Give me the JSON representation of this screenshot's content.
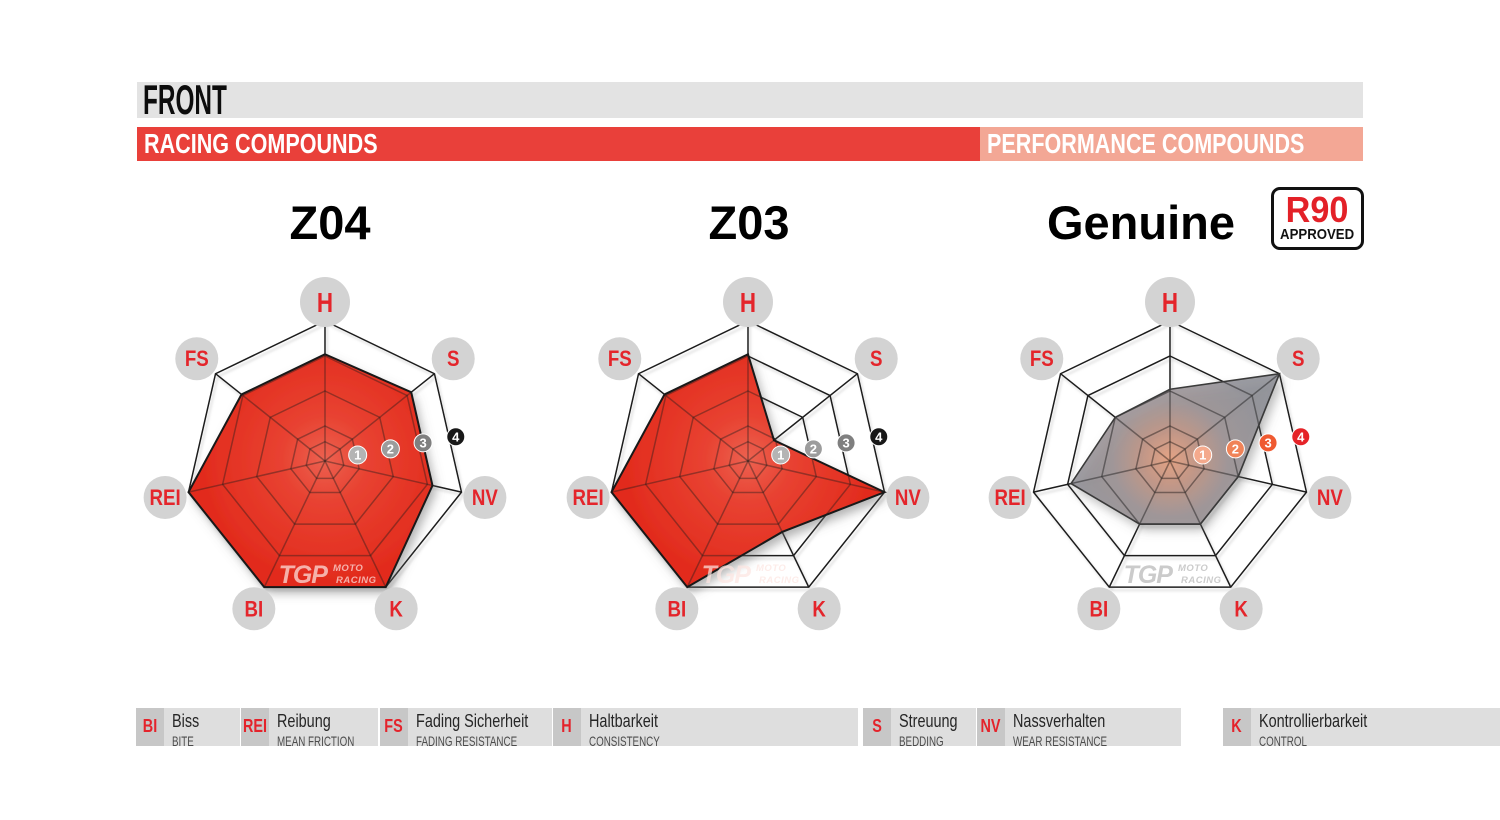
{
  "header": {
    "title": "FRONT",
    "racing_label": "RACING COMPOUNDS",
    "performance_label": "PERFORMANCE COMPOUNDS"
  },
  "badge": {
    "line1": "R90",
    "line2": "APPROVED"
  },
  "watermark": {
    "tgp": "TGP",
    "moto": "MOTO",
    "racing": "RACING"
  },
  "scale": {
    "rings": [
      0.55,
      1,
      2,
      3,
      4
    ],
    "markers": [
      1,
      2,
      3,
      4
    ],
    "max": 4
  },
  "axis_labels": [
    "H",
    "S",
    "NV",
    "K",
    "BI",
    "REI",
    "FS"
  ],
  "chart_data": [
    {
      "type": "radar",
      "title": "Z04",
      "group": "racing",
      "categories": [
        "H",
        "S",
        "NV",
        "K",
        "BI",
        "REI",
        "FS"
      ],
      "values": [
        3.05,
        3.15,
        3.15,
        4,
        4,
        4,
        3.05
      ],
      "marker_colors": [
        "#b4b4b4",
        "#9c9c9c",
        "#7f7f7f",
        "#181818"
      ],
      "fill_style": "red"
    },
    {
      "type": "radar",
      "title": "Z03",
      "group": "racing",
      "categories": [
        "H",
        "S",
        "NV",
        "K",
        "BI",
        "REI",
        "FS"
      ],
      "values": [
        3.05,
        0.95,
        4,
        2.25,
        4,
        4,
        3.05
      ],
      "marker_colors": [
        "#b4b4b4",
        "#9c9c9c",
        "#7f7f7f",
        "#181818"
      ],
      "fill_style": "red"
    },
    {
      "type": "radar",
      "title": "Genuine",
      "group": "performance",
      "categories": [
        "H",
        "S",
        "NV",
        "K",
        "BI",
        "REI",
        "FS"
      ],
      "values": [
        2.05,
        4,
        2.0,
        2.0,
        2.0,
        2.9,
        2.0
      ],
      "marker_colors": [
        "#f4a98c",
        "#f08358",
        "#ef5a31",
        "#e52328"
      ],
      "fill_style": "gray"
    }
  ],
  "legend": [
    {
      "abbr": "BI",
      "german": "Biss",
      "english": "BITE"
    },
    {
      "abbr": "REI",
      "german": "Reibung",
      "english": "MEAN FRICTION"
    },
    {
      "abbr": "FS",
      "german": "Fading Sicherheit",
      "english": "FADING RESISTANCE"
    },
    {
      "abbr": "H",
      "german": "Haltbarkeit",
      "english": "CONSISTENCY"
    },
    {
      "abbr": "S",
      "german": "Streuung",
      "english": "BEDDING"
    },
    {
      "abbr": "NV",
      "german": "Nassverhalten",
      "english": "WEAR RESISTANCE"
    },
    {
      "abbr": "K",
      "german": "Kontrollierbarkeit",
      "english": "CONTROL"
    }
  ],
  "colors": {
    "front_bar_bg": "#e3e3e3",
    "racing_band_bg": "#e9403a",
    "performance_band_bg": "#f3a795",
    "axis_label_circle": "#d3d3d3",
    "axis_label_text": "#e4252b",
    "red_fill_center": "#ec6150",
    "red_fill_edge": "#e22b1d",
    "gray_fill_center": "#e8a07e",
    "gray_fill_edge": "#8d8e95",
    "grid_line": "#1b1b1b"
  }
}
